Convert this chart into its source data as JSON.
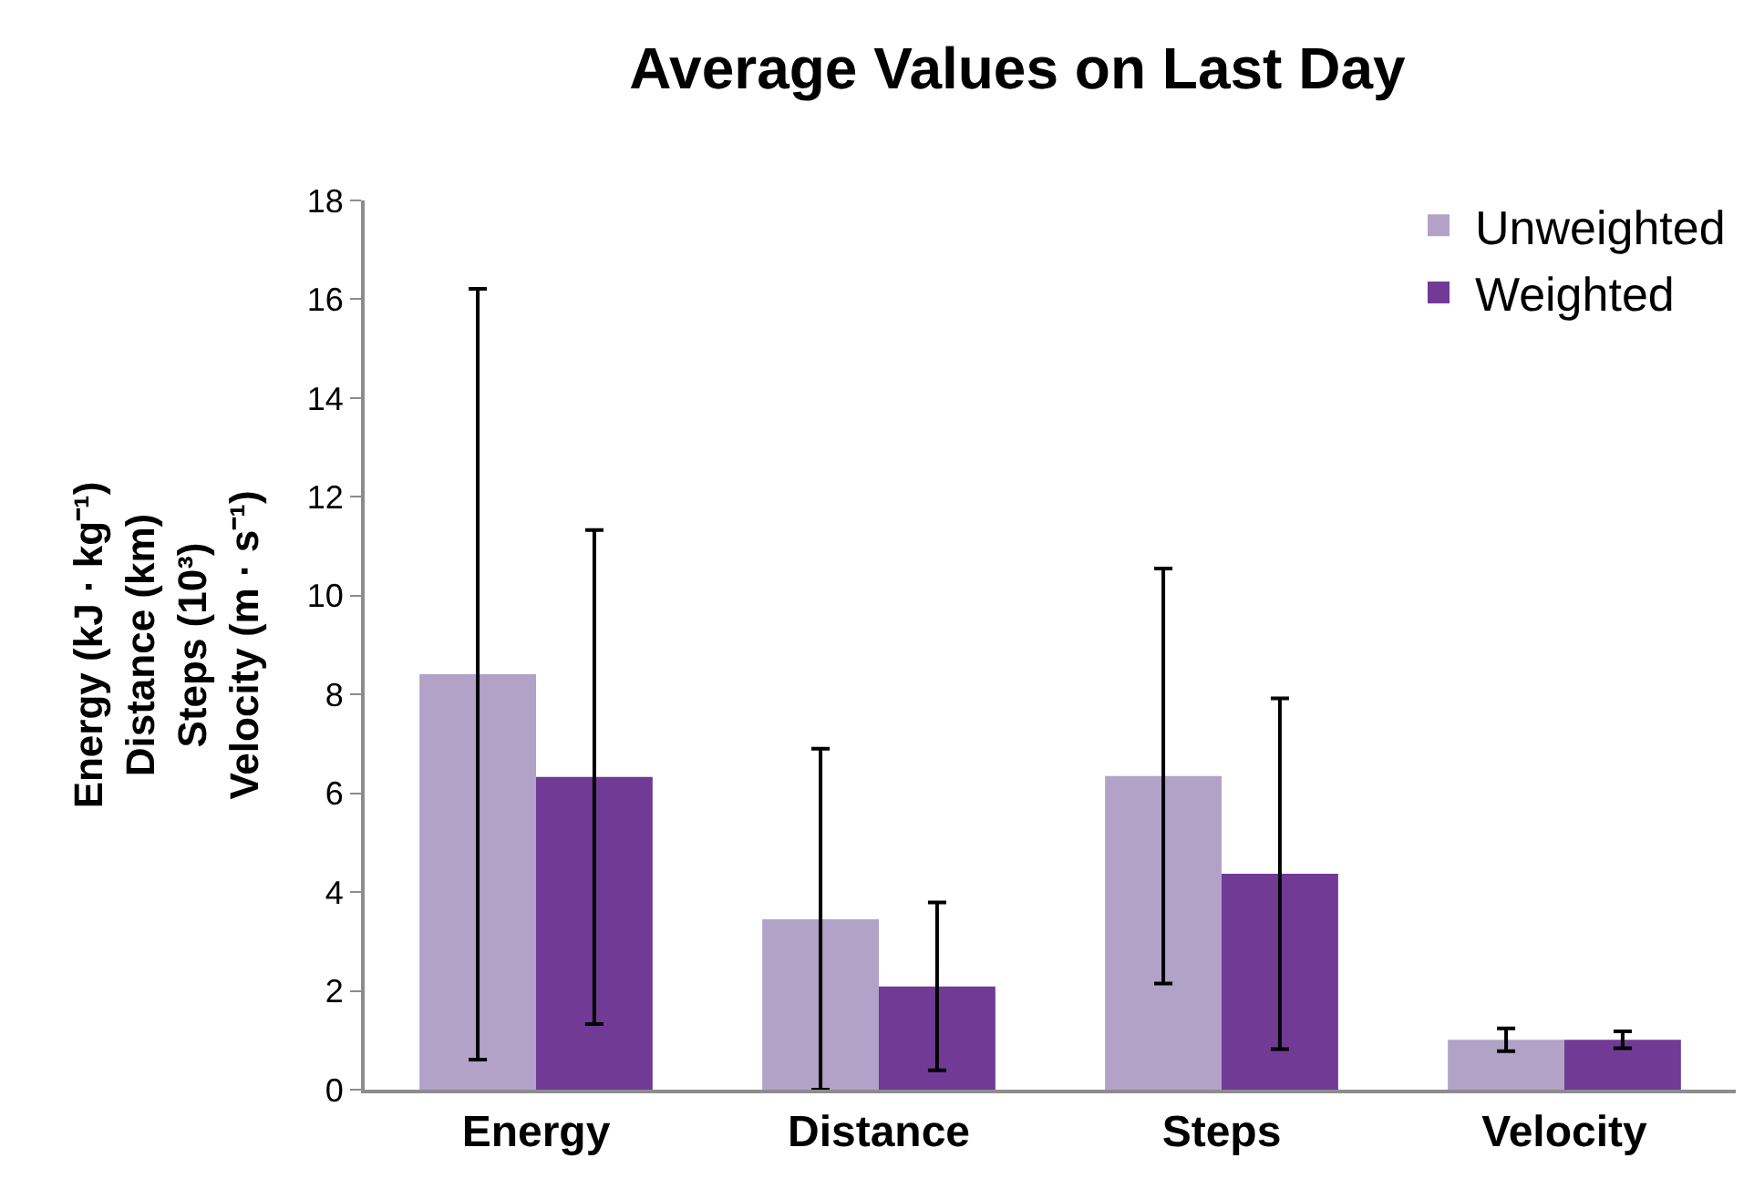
{
  "chart_data": {
    "type": "bar",
    "title": "Average Values on Last Day",
    "ylabel": "Energy (kJ · kg⁻¹)\nDistance (km)\nSteps (10³)\nVelocity (m · s⁻¹)",
    "categories": [
      "Energy",
      "Distance",
      "Steps",
      "Velocity"
    ],
    "series": [
      {
        "name": "Unweighted",
        "color": "#b3a2c8",
        "values": [
          8.41,
          3.45,
          6.35,
          1.01
        ],
        "errors": [
          7.8,
          3.45,
          4.2,
          0.23
        ]
      },
      {
        "name": "Weighted",
        "color": "#713a95",
        "values": [
          6.33,
          2.09,
          4.37,
          1.01
        ],
        "errors": [
          5.0,
          1.7,
          3.55,
          0.17
        ]
      }
    ],
    "ylim": [
      0,
      18
    ],
    "yticks": [
      0,
      2,
      4,
      6,
      8,
      10,
      12,
      14,
      16,
      18
    ],
    "grid": false,
    "legend": "top right"
  }
}
